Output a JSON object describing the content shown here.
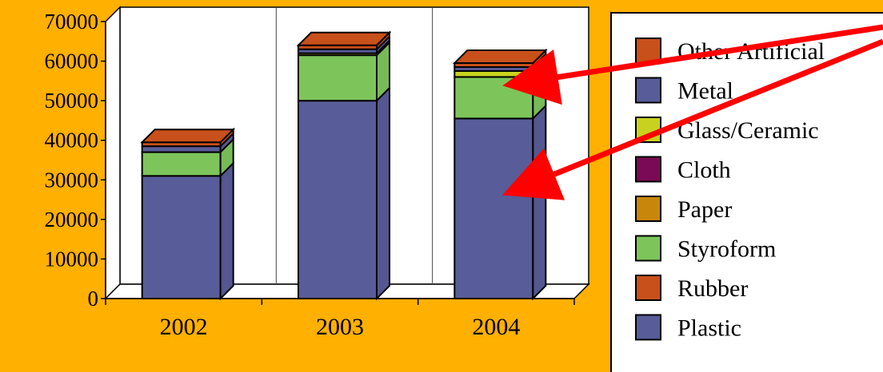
{
  "chart_data": {
    "type": "bar",
    "stacked": true,
    "three_d": true,
    "categories": [
      "2002",
      "2003",
      "2004"
    ],
    "ylim": [
      0,
      70000
    ],
    "yticks": [
      "0",
      "10000",
      "20000",
      "30000",
      "40000",
      "50000",
      "60000",
      "70000"
    ],
    "grid": "vertical lines between categories",
    "legend_position": "right",
    "series": [
      {
        "name": "Plastic",
        "color": "#585C98",
        "values": [
          31000,
          50000,
          45500
        ]
      },
      {
        "name": "Rubber",
        "color": "#C8501A",
        "values": [
          0,
          0,
          0
        ]
      },
      {
        "name": "Styroform",
        "color": "#7DC55A",
        "values": [
          6000,
          11500,
          10500
        ]
      },
      {
        "name": "Paper",
        "color": "#C8860A",
        "values": [
          0,
          0,
          0
        ]
      },
      {
        "name": "Cloth",
        "color": "#7A0A55",
        "values": [
          0,
          0,
          0
        ]
      },
      {
        "name": "Glass/Ceramic",
        "color": "#C8D21E",
        "values": [
          0,
          500,
          1500
        ]
      },
      {
        "name": "Metal",
        "color": "#585C98",
        "values": [
          1500,
          1000,
          1000
        ]
      },
      {
        "name": "Other Artificial",
        "color": "#C8501A",
        "values": [
          1000,
          1000,
          1000
        ]
      }
    ],
    "legend": [
      "Other Artificial",
      "Metal",
      "Glass/Ceramic",
      "Cloth",
      "Paper",
      "Styroform",
      "Rubber",
      "Plastic"
    ],
    "annotation": "red arrows pointing to the Styroform and Plastic segments of the 2004 bar"
  }
}
